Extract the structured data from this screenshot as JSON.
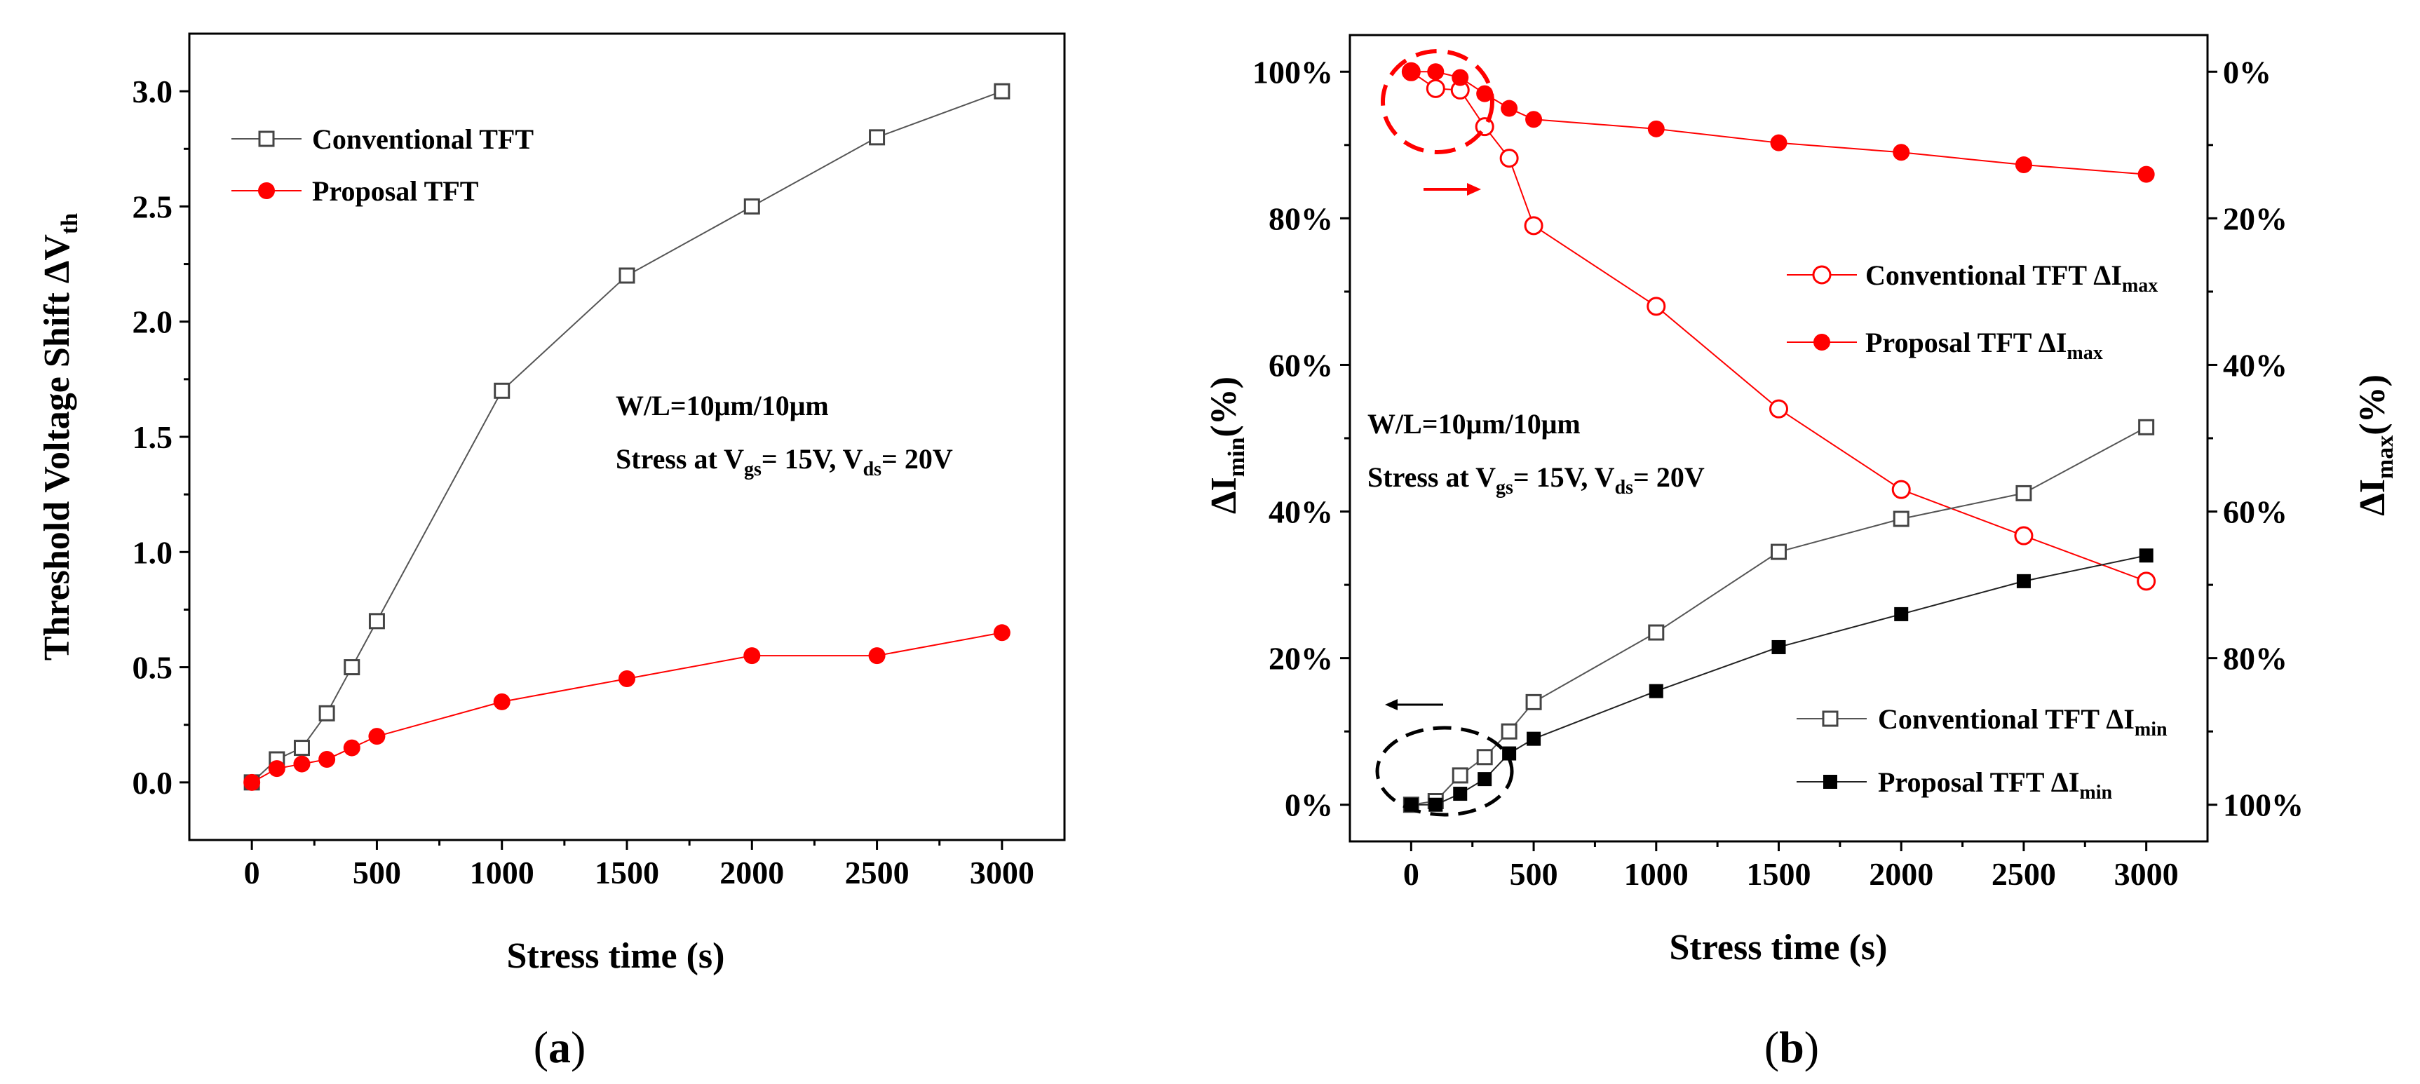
{
  "chart_data": [
    {
      "type": "line",
      "panel_label": "(a)",
      "panel_letter": "a",
      "xlabel": "Stress time (s)",
      "ylabel_main": "Threshold Voltage Shift ΔV",
      "ylabel_sub": "th",
      "xlim": [
        -250,
        3250
      ],
      "ylim": [
        -0.25,
        3.25
      ],
      "xticks": [
        0,
        500,
        1000,
        1500,
        2000,
        2500,
        3000
      ],
      "xtick_labels": [
        "0",
        "500",
        "1000",
        "1500",
        "2000",
        "2500",
        "3000"
      ],
      "yticks": [
        0.0,
        0.5,
        1.0,
        1.5,
        2.0,
        2.5,
        3.0
      ],
      "ytick_labels": [
        "0.0",
        "0.5",
        "1.0",
        "1.5",
        "2.0",
        "2.5",
        "3.0"
      ],
      "annotation": {
        "line1": "W/L=10μm/10μm",
        "line2_prefix": "Stress at V",
        "line2_sub1": "gs",
        "line2_mid": "= 15V, V",
        "line2_sub2": "ds",
        "line2_suffix": "= 20V"
      },
      "series": [
        {
          "name": "Conventional TFT",
          "color": "#555555",
          "marker": "open-square",
          "x": [
            0,
            100,
            200,
            300,
            400,
            500,
            1000,
            1500,
            2000,
            2500,
            3000
          ],
          "y": [
            0.0,
            0.1,
            0.15,
            0.3,
            0.5,
            0.7,
            1.7,
            2.2,
            2.5,
            2.8,
            3.0
          ]
        },
        {
          "name": "Proposal TFT",
          "color": "#ff0000",
          "marker": "filled-circle",
          "x": [
            0,
            100,
            200,
            300,
            400,
            500,
            1000,
            1500,
            2000,
            2500,
            3000
          ],
          "y": [
            0.0,
            0.06,
            0.08,
            0.1,
            0.15,
            0.2,
            0.35,
            0.45,
            0.55,
            0.55,
            0.65
          ]
        }
      ]
    },
    {
      "type": "line",
      "panel_label": "(b)",
      "panel_letter": "b",
      "xlabel": "Stress time (s)",
      "ylabel_left_main": "ΔI",
      "ylabel_left_sub": "min",
      "ylabel_left_suffix": "(%)",
      "ylabel_right_main": "ΔI",
      "ylabel_right_sub": "max",
      "ylabel_right_suffix": "(%)",
      "xlim": [
        -250,
        3250
      ],
      "ylim_left": [
        -5,
        105
      ],
      "ylim_right": [
        105,
        -5
      ],
      "xticks": [
        0,
        500,
        1000,
        1500,
        2000,
        2500,
        3000
      ],
      "xtick_labels": [
        "0",
        "500",
        "1000",
        "1500",
        "2000",
        "2500",
        "3000"
      ],
      "yticks_left": [
        0,
        20,
        40,
        60,
        80,
        100
      ],
      "ytick_labels_left": [
        "0%",
        "20%",
        "40%",
        "60%",
        "80%",
        "100%"
      ],
      "yticks_right": [
        0,
        20,
        40,
        60,
        80,
        100
      ],
      "ytick_labels_right": [
        "0%",
        "20%",
        "40%",
        "60%",
        "80%",
        "100%"
      ],
      "annotation": {
        "line1": "W/L=10μm/10μm",
        "line2_prefix": "Stress at V",
        "line2_sub1": "gs",
        "line2_mid": "= 15V, V",
        "line2_sub2": "ds",
        "line2_suffix": "= 20V"
      },
      "series": [
        {
          "name": "Conventional TFT ΔI",
          "name_sub": "max",
          "axis": "right",
          "color": "#ff0000",
          "marker": "open-circle",
          "x": [
            0,
            100,
            200,
            300,
            400,
            500,
            1000,
            1500,
            2000,
            2500,
            3000
          ],
          "y": [
            0.0,
            2.3,
            2.5,
            7.5,
            11.8,
            21.0,
            32.0,
            46.0,
            57.0,
            63.3,
            69.5
          ]
        },
        {
          "name": "Proposal TFT ΔI",
          "name_sub": "max",
          "axis": "right",
          "color": "#ff0000",
          "marker": "filled-circle",
          "x": [
            0,
            100,
            200,
            300,
            400,
            500,
            1000,
            1500,
            2000,
            2500,
            3000
          ],
          "y": [
            0.0,
            0.0,
            0.8,
            3.0,
            5.0,
            6.5,
            7.8,
            9.7,
            11.0,
            12.7,
            14.0
          ]
        },
        {
          "name": "Conventional TFT ΔI",
          "name_sub": "min",
          "axis": "left",
          "color": "#555555",
          "marker": "open-square",
          "x": [
            0,
            100,
            200,
            300,
            400,
            500,
            1000,
            1500,
            2000,
            2500,
            3000
          ],
          "y": [
            0.0,
            0.5,
            4.0,
            6.5,
            10.0,
            14.0,
            23.5,
            34.5,
            39.0,
            42.5,
            51.5
          ]
        },
        {
          "name": "Proposal TFT ΔI",
          "name_sub": "min",
          "axis": "left",
          "color": "#222222",
          "marker": "filled-square",
          "x": [
            0,
            100,
            200,
            300,
            400,
            500,
            1000,
            1500,
            2000,
            2500,
            3000
          ],
          "y": [
            0.0,
            0.0,
            1.5,
            3.5,
            7.0,
            9.0,
            15.5,
            21.5,
            26.0,
            30.5,
            34.0
          ]
        }
      ]
    }
  ]
}
